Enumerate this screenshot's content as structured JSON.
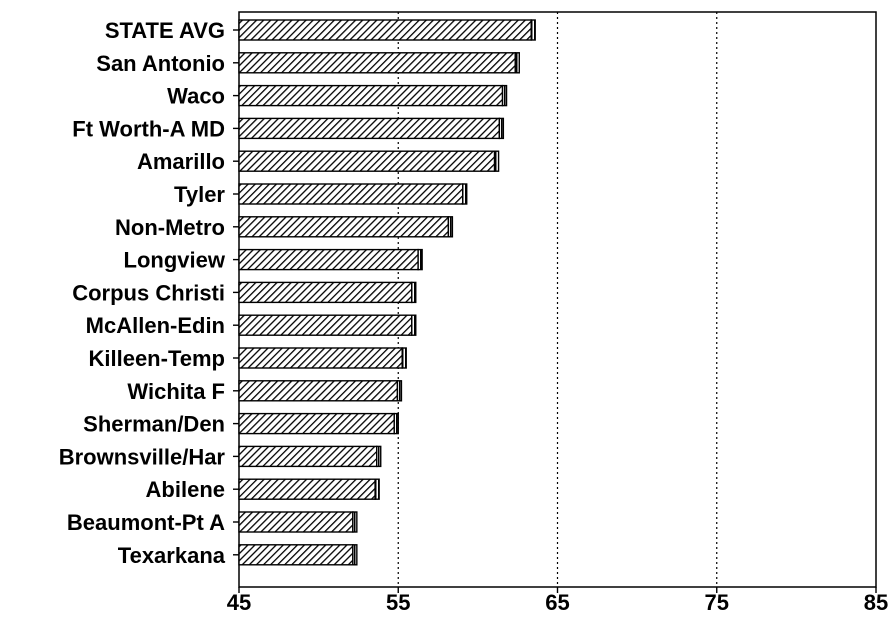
{
  "chart_data": {
    "type": "bar",
    "orientation": "horizontal",
    "title": "",
    "xlabel": "",
    "ylabel": "",
    "xlim": [
      45,
      85
    ],
    "xticks": [
      "45",
      "55",
      "65",
      "75",
      "85"
    ],
    "reference_lines": [
      55,
      65,
      75
    ],
    "categories": [
      "STATE AVG",
      "San Antonio",
      "Waco",
      "Ft Worth-A MD",
      "Amarillo",
      "Tyler",
      "Non-Metro",
      "Longview",
      "Corpus Christi",
      "McAllen-Edin",
      "Killeen-Temp",
      "Wichita F",
      "Sherman/Den",
      "Brownsville/Har",
      "Abilene",
      "Beaumont-Pt A",
      "Texarkana"
    ],
    "values": [
      63.6,
      62.6,
      61.8,
      61.6,
      61.3,
      59.3,
      58.4,
      56.5,
      56.1,
      56.1,
      55.5,
      55.2,
      55.0,
      53.9,
      53.8,
      52.4,
      52.4
    ],
    "grid": "dotted vertical lines at 55, 65, 75",
    "bar_fill": "diagonal hatch"
  }
}
